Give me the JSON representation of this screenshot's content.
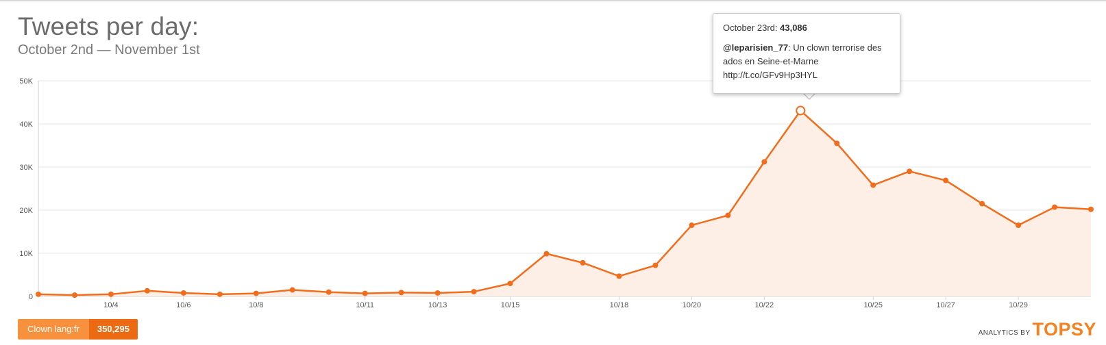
{
  "header": {
    "title": "Tweets per day:",
    "subtitle": "October 2nd — November 1st"
  },
  "tooltip": {
    "date_label": "October 23rd:",
    "value": "43,086",
    "user": "@leparisien_77",
    "tweet_text": ": Un clown terrorise des ados en Seine-et-Marne http://t.co/GFv9Hp3HYL"
  },
  "legend": {
    "name": "Clown lang:fr",
    "total": "350,295"
  },
  "branding": {
    "prefix": "ANALYTICS BY",
    "logo": "TOPSY"
  },
  "colors": {
    "line": "#f26d1b",
    "area": "#fdefe5",
    "grid": "#e6e6e6"
  },
  "chart_data": {
    "type": "area",
    "x": [
      "10/2",
      "10/3",
      "10/4",
      "10/5",
      "10/6",
      "10/7",
      "10/8",
      "10/9",
      "10/10",
      "10/11",
      "10/12",
      "10/13",
      "10/14",
      "10/15",
      "10/16",
      "10/17",
      "10/18",
      "10/19",
      "10/20",
      "10/21",
      "10/22",
      "10/23",
      "10/24",
      "10/25",
      "10/26",
      "10/27",
      "10/28",
      "10/29",
      "10/30",
      "10/31"
    ],
    "values": [
      500,
      300,
      500,
      1300,
      800,
      500,
      700,
      1500,
      1000,
      700,
      900,
      800,
      1100,
      3000,
      9900,
      7800,
      4700,
      7200,
      16500,
      18800,
      31200,
      43086,
      35500,
      25800,
      29000,
      26900,
      21500,
      16500,
      20700,
      20200
    ],
    "x_tick_labels": [
      "10/4",
      "10/6",
      "10/8",
      "10/11",
      "10/13",
      "10/15",
      "10/18",
      "10/20",
      "10/22",
      "10/25",
      "10/27",
      "10/29"
    ],
    "y_ticks": [
      "0",
      "10K",
      "20K",
      "30K",
      "40K",
      "50K"
    ],
    "y_tick_values": [
      0,
      10000,
      20000,
      30000,
      40000,
      50000
    ],
    "ylim": [
      0,
      50000
    ],
    "highlight": "10/23",
    "grid": true
  }
}
